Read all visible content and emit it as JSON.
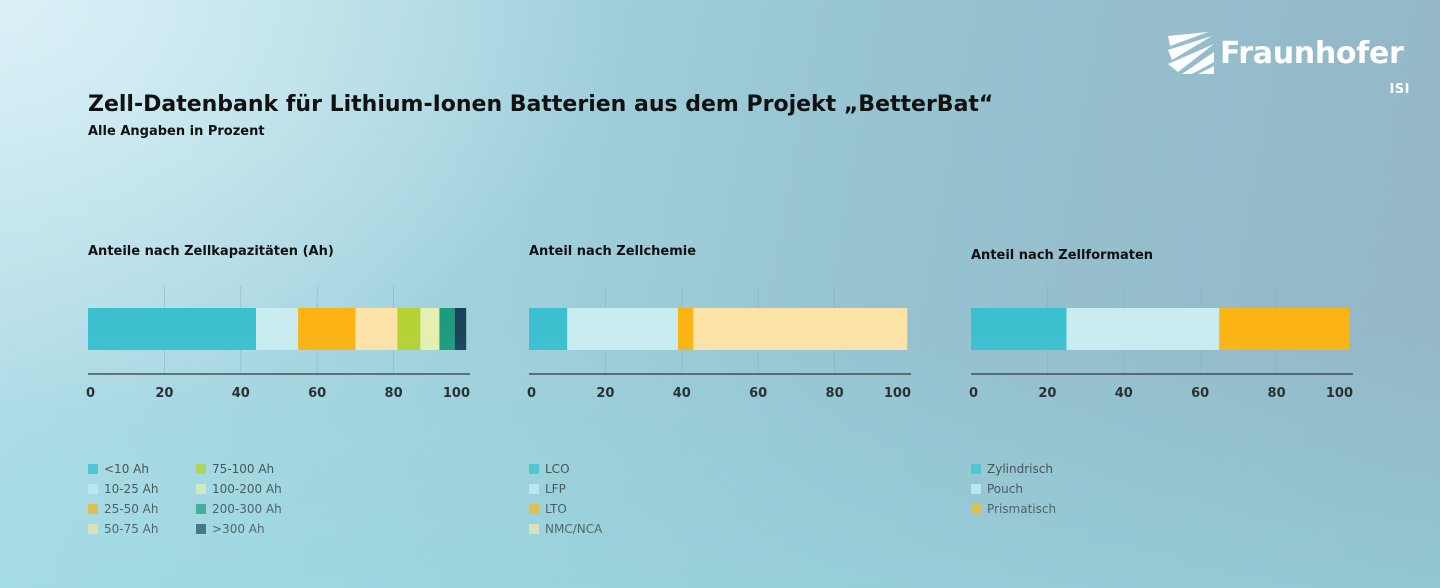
{
  "header": {
    "title": "Zell-Datenbank für Lithium-Ionen Batterien aus dem Projekt „BetterBat“",
    "subtitle": "Alle Angaben in Prozent"
  },
  "logo": {
    "name": "Fraunhofer",
    "sub": "ISI",
    "icon": "fraunhofer-stripes-icon"
  },
  "colors": {
    "c1": "#3cc0cf",
    "c2": "#c9ecf0",
    "c3": "#fbb414",
    "c4": "#fde3a7",
    "c5": "#b6d334",
    "c6": "#e5efb0",
    "c7": "#1e9b7d",
    "c8": "#1b4358",
    "axis": "#2a2a2a",
    "grid": "#7fa9b6"
  },
  "chart_data": [
    {
      "type": "bar",
      "orientation": "horizontal-stacked",
      "title": "Anteile nach Zellkapazitäten (Ah)",
      "xlim": [
        0,
        100
      ],
      "ticks": [
        0,
        20,
        40,
        60,
        80,
        100
      ],
      "grid": true,
      "series": [
        {
          "name": "<10 Ah",
          "value": 44,
          "color": "#3cc0cf"
        },
        {
          "name": "10-25 Ah",
          "value": 11,
          "color": "#c9ecf0"
        },
        {
          "name": "25-50 Ah",
          "value": 15,
          "color": "#fbb414"
        },
        {
          "name": "50-75 Ah",
          "value": 11,
          "color": "#fde3a7"
        },
        {
          "name": "75-100 Ah",
          "value": 6,
          "color": "#b6d334"
        },
        {
          "name": "100-200 Ah",
          "value": 5,
          "color": "#e5efb0"
        },
        {
          "name": "200-300 Ah",
          "value": 4,
          "color": "#1e9b7d"
        },
        {
          "name": ">300 Ah",
          "value": 3,
          "color": "#1b4358"
        }
      ]
    },
    {
      "type": "bar",
      "orientation": "horizontal-stacked",
      "title": "Anteil nach Zellchemie",
      "xlim": [
        0,
        100
      ],
      "ticks": [
        0,
        20,
        40,
        60,
        80,
        100
      ],
      "grid": true,
      "series": [
        {
          "name": "LCO",
          "value": 10,
          "color": "#3cc0cf"
        },
        {
          "name": "LFP",
          "value": 29,
          "color": "#c9ecf0"
        },
        {
          "name": "LTO",
          "value": 4,
          "color": "#fbb414"
        },
        {
          "name": "NMC/NCA",
          "value": 56,
          "color": "#fde3a7"
        }
      ]
    },
    {
      "type": "bar",
      "orientation": "horizontal-stacked",
      "title": "Anteil nach Zellformaten",
      "xlim": [
        0,
        100
      ],
      "ticks": [
        0,
        20,
        40,
        60,
        80,
        100
      ],
      "grid": true,
      "series": [
        {
          "name": "Zylindrisch",
          "value": 25,
          "color": "#3cc0cf"
        },
        {
          "name": "Pouch",
          "value": 40,
          "color": "#c9ecf0"
        },
        {
          "name": "Prismatisch",
          "value": 34,
          "color": "#fbb414"
        }
      ]
    }
  ]
}
